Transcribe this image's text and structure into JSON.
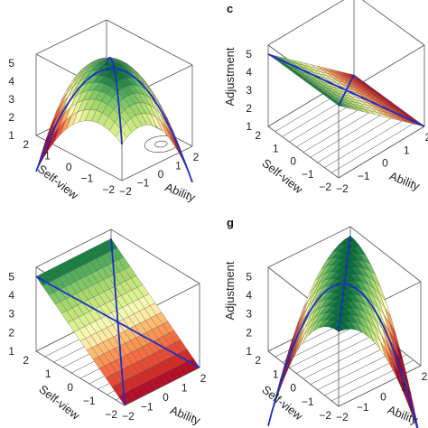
{
  "figure": {
    "panels": [
      {
        "id": "top-left",
        "label": "",
        "ylabel": "",
        "xlabel": "Ability",
        "zlabel": "Self-view",
        "surface": "peak",
        "contours": true,
        "show_vertical_ticks": true
      },
      {
        "id": "top-right",
        "label": "c",
        "ylabel": "Adjustment",
        "xlabel": "Ability",
        "zlabel": "Self-view",
        "surface": "plane-ability",
        "contours": false,
        "show_vertical_ticks": true
      },
      {
        "id": "bottom-left",
        "label": "",
        "ylabel": "",
        "xlabel": "Ability",
        "zlabel": "Self-view",
        "surface": "plane-selfview",
        "contours": false,
        "show_vertical_ticks": true
      },
      {
        "id": "bottom-right",
        "label": "g",
        "ylabel": "Adjustment",
        "xlabel": "Ability",
        "zlabel": "Self-view",
        "surface": "ridge",
        "contours": false,
        "show_vertical_ticks": true
      }
    ],
    "axis_ticks": {
      "vertical": [
        "1",
        "2",
        "3",
        "4",
        "5"
      ],
      "ability": [
        "−2",
        "−1",
        "0",
        "1",
        "2"
      ],
      "selfview": [
        "−2",
        "−1",
        "0",
        "1",
        "2"
      ]
    },
    "colors": {
      "low": "#a50026",
      "mid": "#ffffbf",
      "high": "#006837",
      "line": "#1a2fc9"
    }
  }
}
